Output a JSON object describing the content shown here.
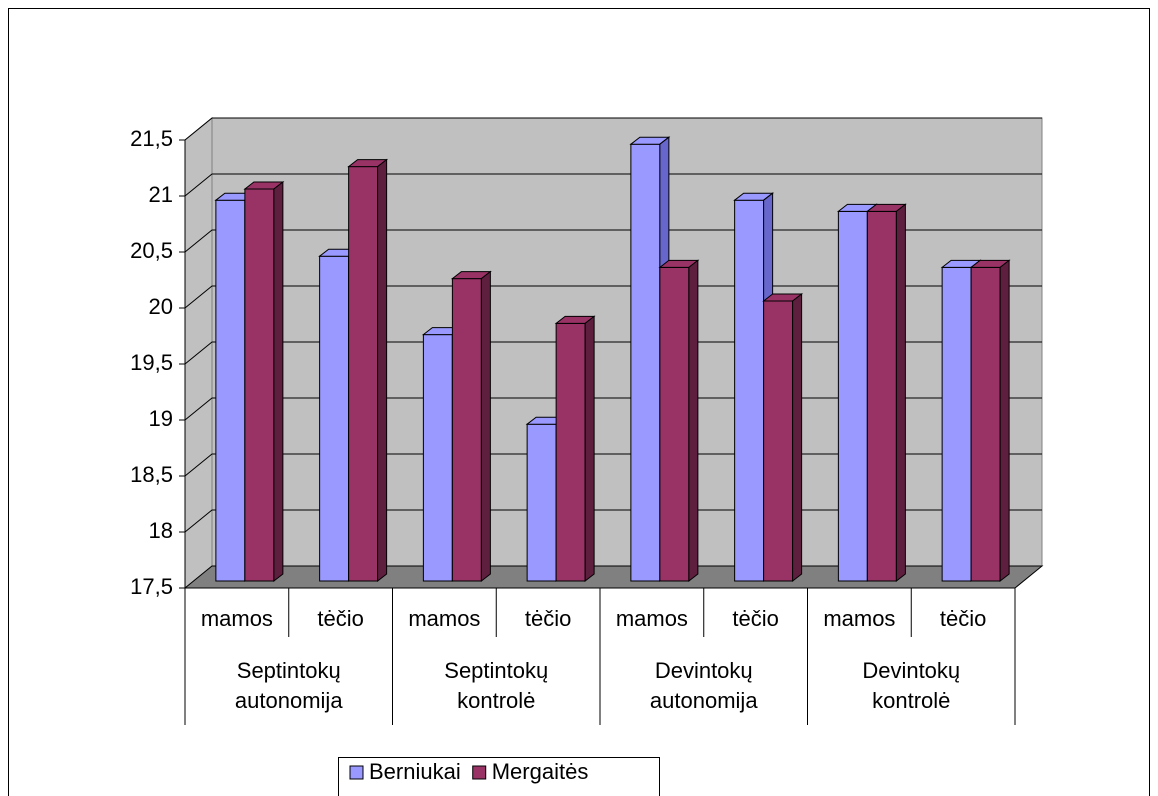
{
  "chart_data": {
    "type": "bar3d",
    "categories": [
      "mamos",
      "tėčio",
      "mamos",
      "tėčio",
      "mamos",
      "tėčio",
      "mamos",
      "tėčio"
    ],
    "groups": [
      [
        "Septintokų",
        "autonomija"
      ],
      [
        "Septintokų",
        "kontrolė"
      ],
      [
        "Devintokų",
        "autonomija"
      ],
      [
        "Devintokų",
        "kontrolė"
      ]
    ],
    "series": [
      {
        "name": "Berniukai",
        "color": "#9999ff",
        "side_color": "#6666cc",
        "values": [
          20.9,
          20.4,
          19.7,
          18.9,
          21.4,
          20.9,
          20.8,
          20.3
        ]
      },
      {
        "name": "Mergaitės",
        "color": "#993366",
        "side_color": "#5e1f3f",
        "values": [
          21.0,
          21.2,
          20.2,
          19.8,
          20.3,
          20.0,
          20.8,
          20.3
        ]
      }
    ],
    "ylim": [
      17.5,
      21.5
    ],
    "yticks": [
      {
        "value": 17.5,
        "label": "17,5"
      },
      18,
      {
        "value": 18.5,
        "label": "18,5"
      },
      19,
      {
        "value": 19.5,
        "label": "19,5"
      },
      20,
      {
        "value": 20.5,
        "label": "20,5"
      },
      21,
      {
        "value": 21.5,
        "label": "21,5"
      }
    ],
    "grid": true,
    "legend": "bottom"
  }
}
